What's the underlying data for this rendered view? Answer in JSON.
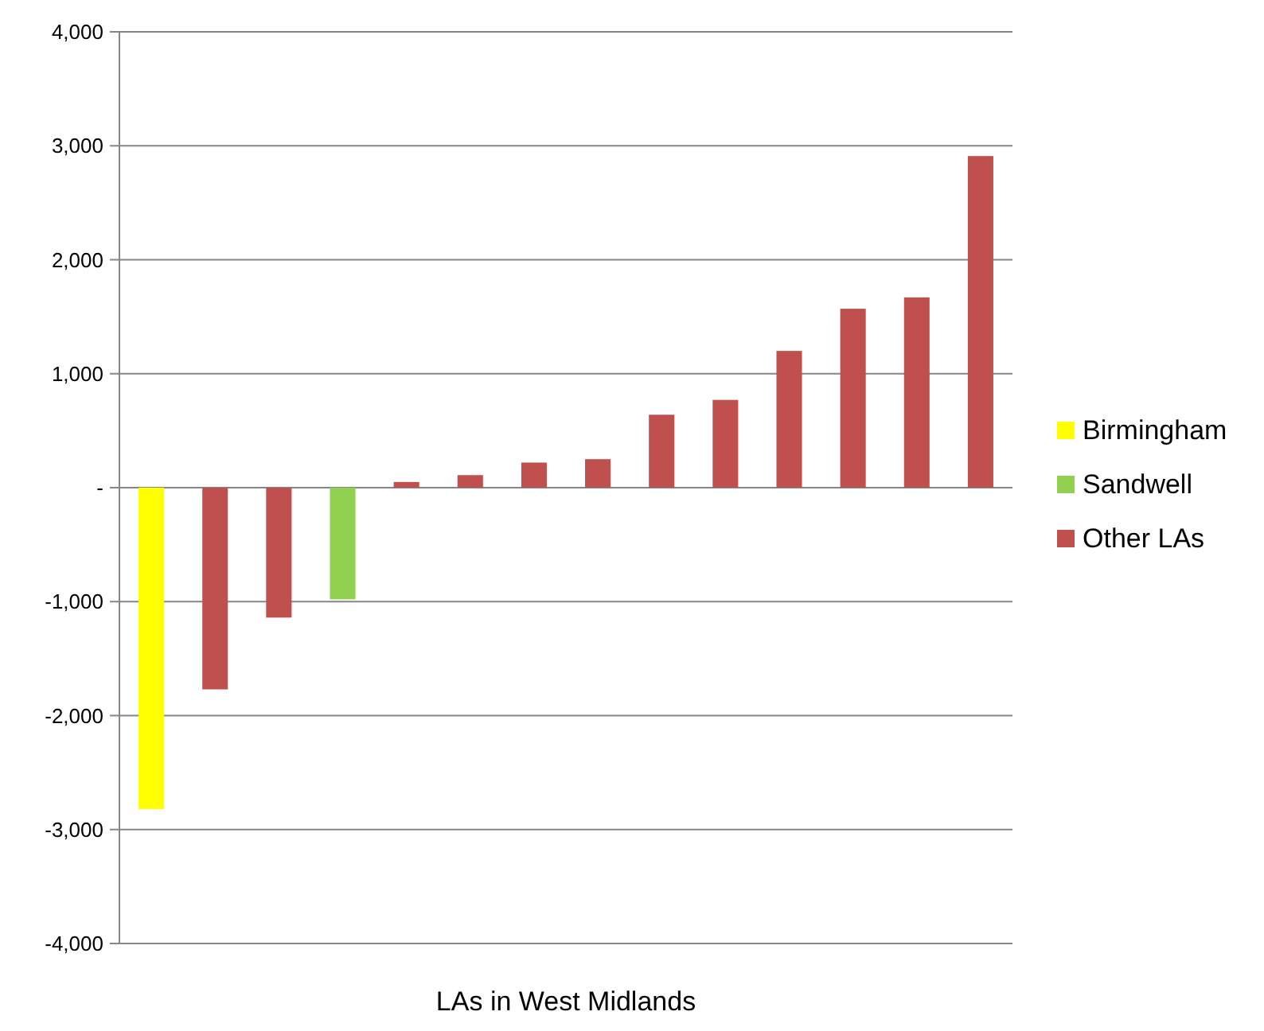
{
  "chart_data": {
    "type": "bar",
    "xlabel": "LAs in West Midlands",
    "categories": [
      null,
      null,
      null,
      null,
      null,
      null,
      null,
      null,
      null,
      null,
      null,
      null,
      null,
      null
    ],
    "series": [
      {
        "name": "Birmingham",
        "color": "#ffff00",
        "values": [
          -2820,
          null,
          null,
          null,
          null,
          null,
          null,
          null,
          null,
          null,
          null,
          null,
          null,
          null
        ]
      },
      {
        "name": "Sandwell",
        "color": "#92d050",
        "values": [
          null,
          null,
          null,
          -980,
          null,
          null,
          null,
          null,
          null,
          null,
          null,
          null,
          null,
          null
        ]
      },
      {
        "name": "Other LAs",
        "color": "#c0504d",
        "values": [
          null,
          -1770,
          -1140,
          null,
          50,
          110,
          220,
          250,
          640,
          770,
          1200,
          1570,
          1670,
          2910
        ]
      }
    ],
    "ylim": [
      -4000,
      4000
    ],
    "yticks": [
      {
        "value": -4000,
        "label": "-4,000"
      },
      {
        "value": -3000,
        "label": "-3,000"
      },
      {
        "value": -2000,
        "label": "-2,000"
      },
      {
        "value": -1000,
        "label": "-1,000"
      },
      {
        "value": 0,
        "label": "-"
      },
      {
        "value": 1000,
        "label": "1,000"
      },
      {
        "value": 2000,
        "label": "2,000"
      },
      {
        "value": 3000,
        "label": "3,000"
      },
      {
        "value": 4000,
        "label": "4,000"
      }
    ],
    "grid": "y",
    "legend": "right",
    "tick_labels": "y"
  }
}
